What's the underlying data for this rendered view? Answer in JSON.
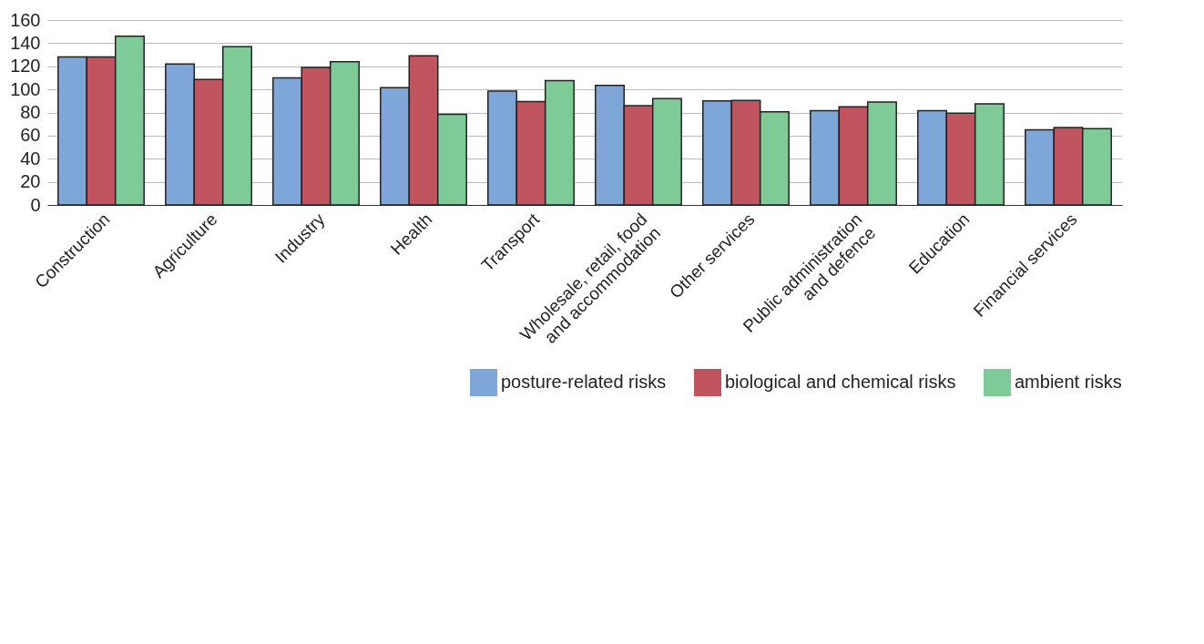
{
  "chart_data": {
    "type": "bar",
    "categories": [
      "Construction",
      "Agriculture",
      "Industry",
      "Health",
      "Transport",
      "Wholesale, retail, food and accommodation",
      "Other services",
      "Public administration and defence",
      "Education",
      "Financial services"
    ],
    "series": [
      {
        "name": "posture-related risks",
        "color": "#7fa6d8",
        "values": [
          128,
          122,
          110,
          101.5,
          98.5,
          103.5,
          90,
          81.5,
          81.5,
          65
        ]
      },
      {
        "name": "biological and chemical risks",
        "color": "#c0545f",
        "values": [
          128,
          108.5,
          119,
          129,
          89.5,
          86,
          90.5,
          85,
          79.5,
          67
        ]
      },
      {
        "name": "ambient risks",
        "color": "#7fcb98",
        "values": [
          146,
          137,
          124,
          78.5,
          107.5,
          92,
          80.5,
          89,
          87.5,
          66
        ]
      }
    ],
    "ylim": [
      0,
      160
    ],
    "yticks": [
      0,
      20,
      40,
      60,
      80,
      100,
      120,
      140,
      160
    ],
    "grid": "y",
    "legend": "bottom right"
  }
}
